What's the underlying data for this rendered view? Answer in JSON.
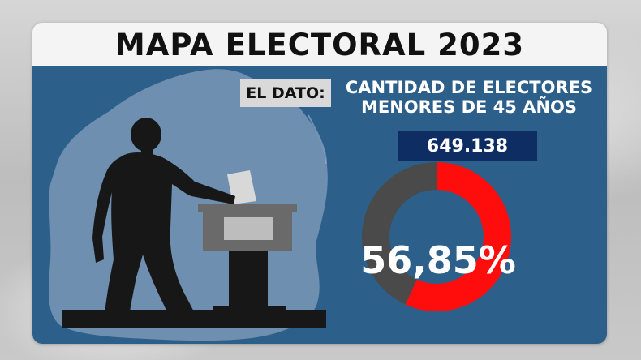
{
  "title": "MAPA ELECTORAL 2023",
  "dato_label": "EL DATO:",
  "headline_line1": "CANTIDAD DE ELECTORES",
  "headline_line2": "MENORES DE 45 AÑOS",
  "value": "649.138",
  "percentage_label": "56,85%",
  "donut": {
    "percentage": 56.85,
    "highlight_color": "#ff0d0d",
    "rest_color": "#4a4a4a"
  },
  "colors": {
    "panel": "#2c5f8a",
    "value_box": "#0d2d63",
    "map_shape": "#6e8fb0",
    "silhouette": "#171717"
  },
  "icons": [
    "voter-silhouette-icon",
    "ballot-box-icon",
    "province-map-icon"
  ]
}
